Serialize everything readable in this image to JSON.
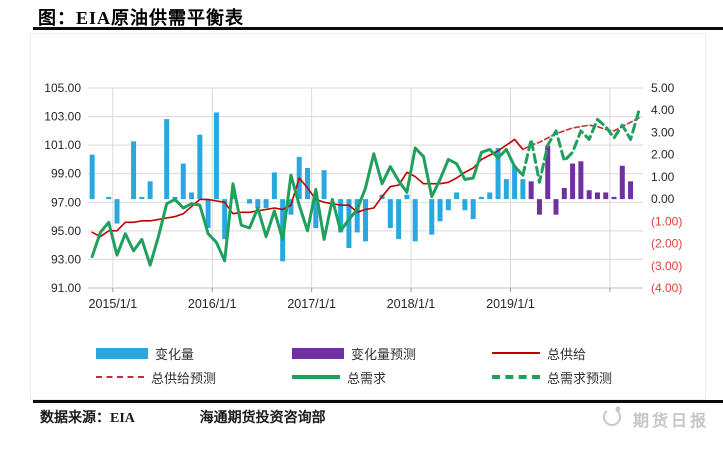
{
  "title": "图：EIA原油供需平衡表",
  "footer": {
    "source": "数据来源：EIA",
    "dept": "海通期货投资咨询部",
    "watermark": "期货日报"
  },
  "legend": [
    {
      "label": "变化量",
      "type": "bar",
      "color": "#29A8DF"
    },
    {
      "label": "变化量预测",
      "type": "bar",
      "color": "#7030A0"
    },
    {
      "label": "总供给",
      "type": "line",
      "color": "#C00000"
    },
    {
      "label": "总供给预测",
      "type": "line-dashed",
      "color": "#C0303A"
    },
    {
      "label": "总需求",
      "type": "line-thick",
      "color": "#1FA15D"
    },
    {
      "label": "总需求预测",
      "type": "line-thick-dashed",
      "color": "#1FA15D"
    }
  ],
  "chart_data": {
    "type": "bar+line combo",
    "title": "EIA原油供需平衡表",
    "x_axis": {
      "start": "2014/10",
      "frequency": "monthly",
      "slots": 67,
      "tick_labels": [
        "2015/1/1",
        "2016/1/1",
        "2017/1/1",
        "2018/1/1",
        "2019/1/1"
      ],
      "grid": true
    },
    "left_axis": {
      "min": 91,
      "max": 105,
      "step": 2,
      "tick_labels": [
        "105.00",
        "103.00",
        "101.00",
        "99.00",
        "97.00",
        "95.00",
        "93.00",
        "91.00"
      ],
      "grid": true
    },
    "right_axis": {
      "min": -4,
      "max": 5,
      "step": 1,
      "tick_labels": [
        "5.00",
        "4.00",
        "3.00",
        "2.00",
        "1.00",
        "0.00",
        "(1.00)",
        "(2.00)",
        "(3.00)",
        "(4.00)"
      ],
      "negative_color": "#E03E36"
    },
    "series": [
      {
        "name": "变化量",
        "type": "bar",
        "axis": "right",
        "color": "#29A8DF",
        "start_index": 0,
        "values": [
          2.0,
          0,
          0.1,
          -1.1,
          0,
          2.6,
          0.1,
          0.8,
          0,
          3.6,
          0.1,
          1.6,
          0.3,
          2.9,
          -1.3,
          3.9,
          -1.8,
          0.2,
          0,
          -0.2,
          -0.4,
          -0.4,
          1.2,
          -2.8,
          -0.7,
          1.9,
          1.4,
          -1.3,
          1.3,
          0,
          -1.5,
          -2.2,
          -1.5,
          -1.9,
          0,
          0.2,
          -1.3,
          -1.8,
          0.2,
          -1.9,
          0,
          -1.6,
          -1.0,
          -0.5,
          0.3,
          -0.5,
          -0.9,
          0.1,
          0.3,
          2.3,
          0.9,
          1.5,
          0.9
        ]
      },
      {
        "name": "变化量预测",
        "type": "bar",
        "axis": "right",
        "color": "#7030A0",
        "start_index": 53,
        "values": [
          0.8,
          -0.7,
          2.4,
          -0.7,
          0.5,
          1.6,
          1.7,
          0.4,
          0.3,
          0.3,
          0.1,
          1.5,
          0.8
        ]
      },
      {
        "name": "总供给",
        "type": "line",
        "axis": "left",
        "color": "#C00000",
        "width": 1.6,
        "dashed": false,
        "start_index": 0,
        "values": [
          94.9,
          94.6,
          95.0,
          95.0,
          95.6,
          95.6,
          95.7,
          95.7,
          95.8,
          95.9,
          96.0,
          96.2,
          96.7,
          97.2,
          97.2,
          97.1,
          97.0,
          96.2,
          96.3,
          96.3,
          96.4,
          96.5,
          96.6,
          96.5,
          96.8,
          98.7,
          98.0,
          97.2,
          97.0,
          96.9,
          96.8,
          96.8,
          96.3,
          96.5,
          96.6,
          97.4,
          98.1,
          98.2,
          99.1,
          98.8,
          98.3,
          98.3,
          98.3,
          98.4,
          98.7,
          99.1,
          99.4,
          100.0,
          100.3,
          100.6,
          101.0,
          101.4,
          100.7
        ]
      },
      {
        "name": "总供给预测",
        "type": "line",
        "axis": "left",
        "color": "#C0303A",
        "width": 1.6,
        "dashed": true,
        "dash": "5 3",
        "start_index": 52,
        "values": [
          100.7,
          101.0,
          101.2,
          101.5,
          101.8,
          102.0,
          102.2,
          102.3,
          102.4,
          102.3,
          102.1,
          102.0,
          102.3,
          102.6,
          102.9
        ]
      },
      {
        "name": "总需求",
        "type": "line",
        "axis": "left",
        "color": "#1FA15D",
        "width": 3,
        "dashed": false,
        "start_index": 0,
        "values": [
          93.2,
          94.9,
          95.6,
          93.3,
          94.8,
          93.6,
          94.4,
          92.6,
          94.6,
          96.9,
          97.2,
          96.6,
          96.9,
          96.8,
          94.8,
          94.2,
          92.9,
          98.3,
          95.4,
          95.2,
          96.6,
          94.6,
          96.4,
          94.4,
          98.9,
          96.8,
          95.0,
          97.9,
          94.4,
          97.2,
          95.0,
          95.8,
          96.5,
          98.0,
          100.4,
          98.3,
          99.5,
          98.5,
          97.7,
          100.8,
          100.2,
          97.4,
          98.6,
          100.0,
          99.7,
          98.6,
          98.7,
          100.5,
          100.7,
          100.1,
          100.7,
          99.5,
          98.9
        ]
      },
      {
        "name": "总需求预测",
        "type": "line",
        "axis": "left",
        "color": "#1FA15D",
        "width": 3,
        "dashed": true,
        "dash": "8 5",
        "start_index": 52,
        "values": [
          98.9,
          101.4,
          98.4,
          101.0,
          102.0,
          99.9,
          100.5,
          102.0,
          101.4,
          102.8,
          102.3,
          101.5,
          102.4,
          101.4,
          103.4
        ]
      }
    ]
  }
}
